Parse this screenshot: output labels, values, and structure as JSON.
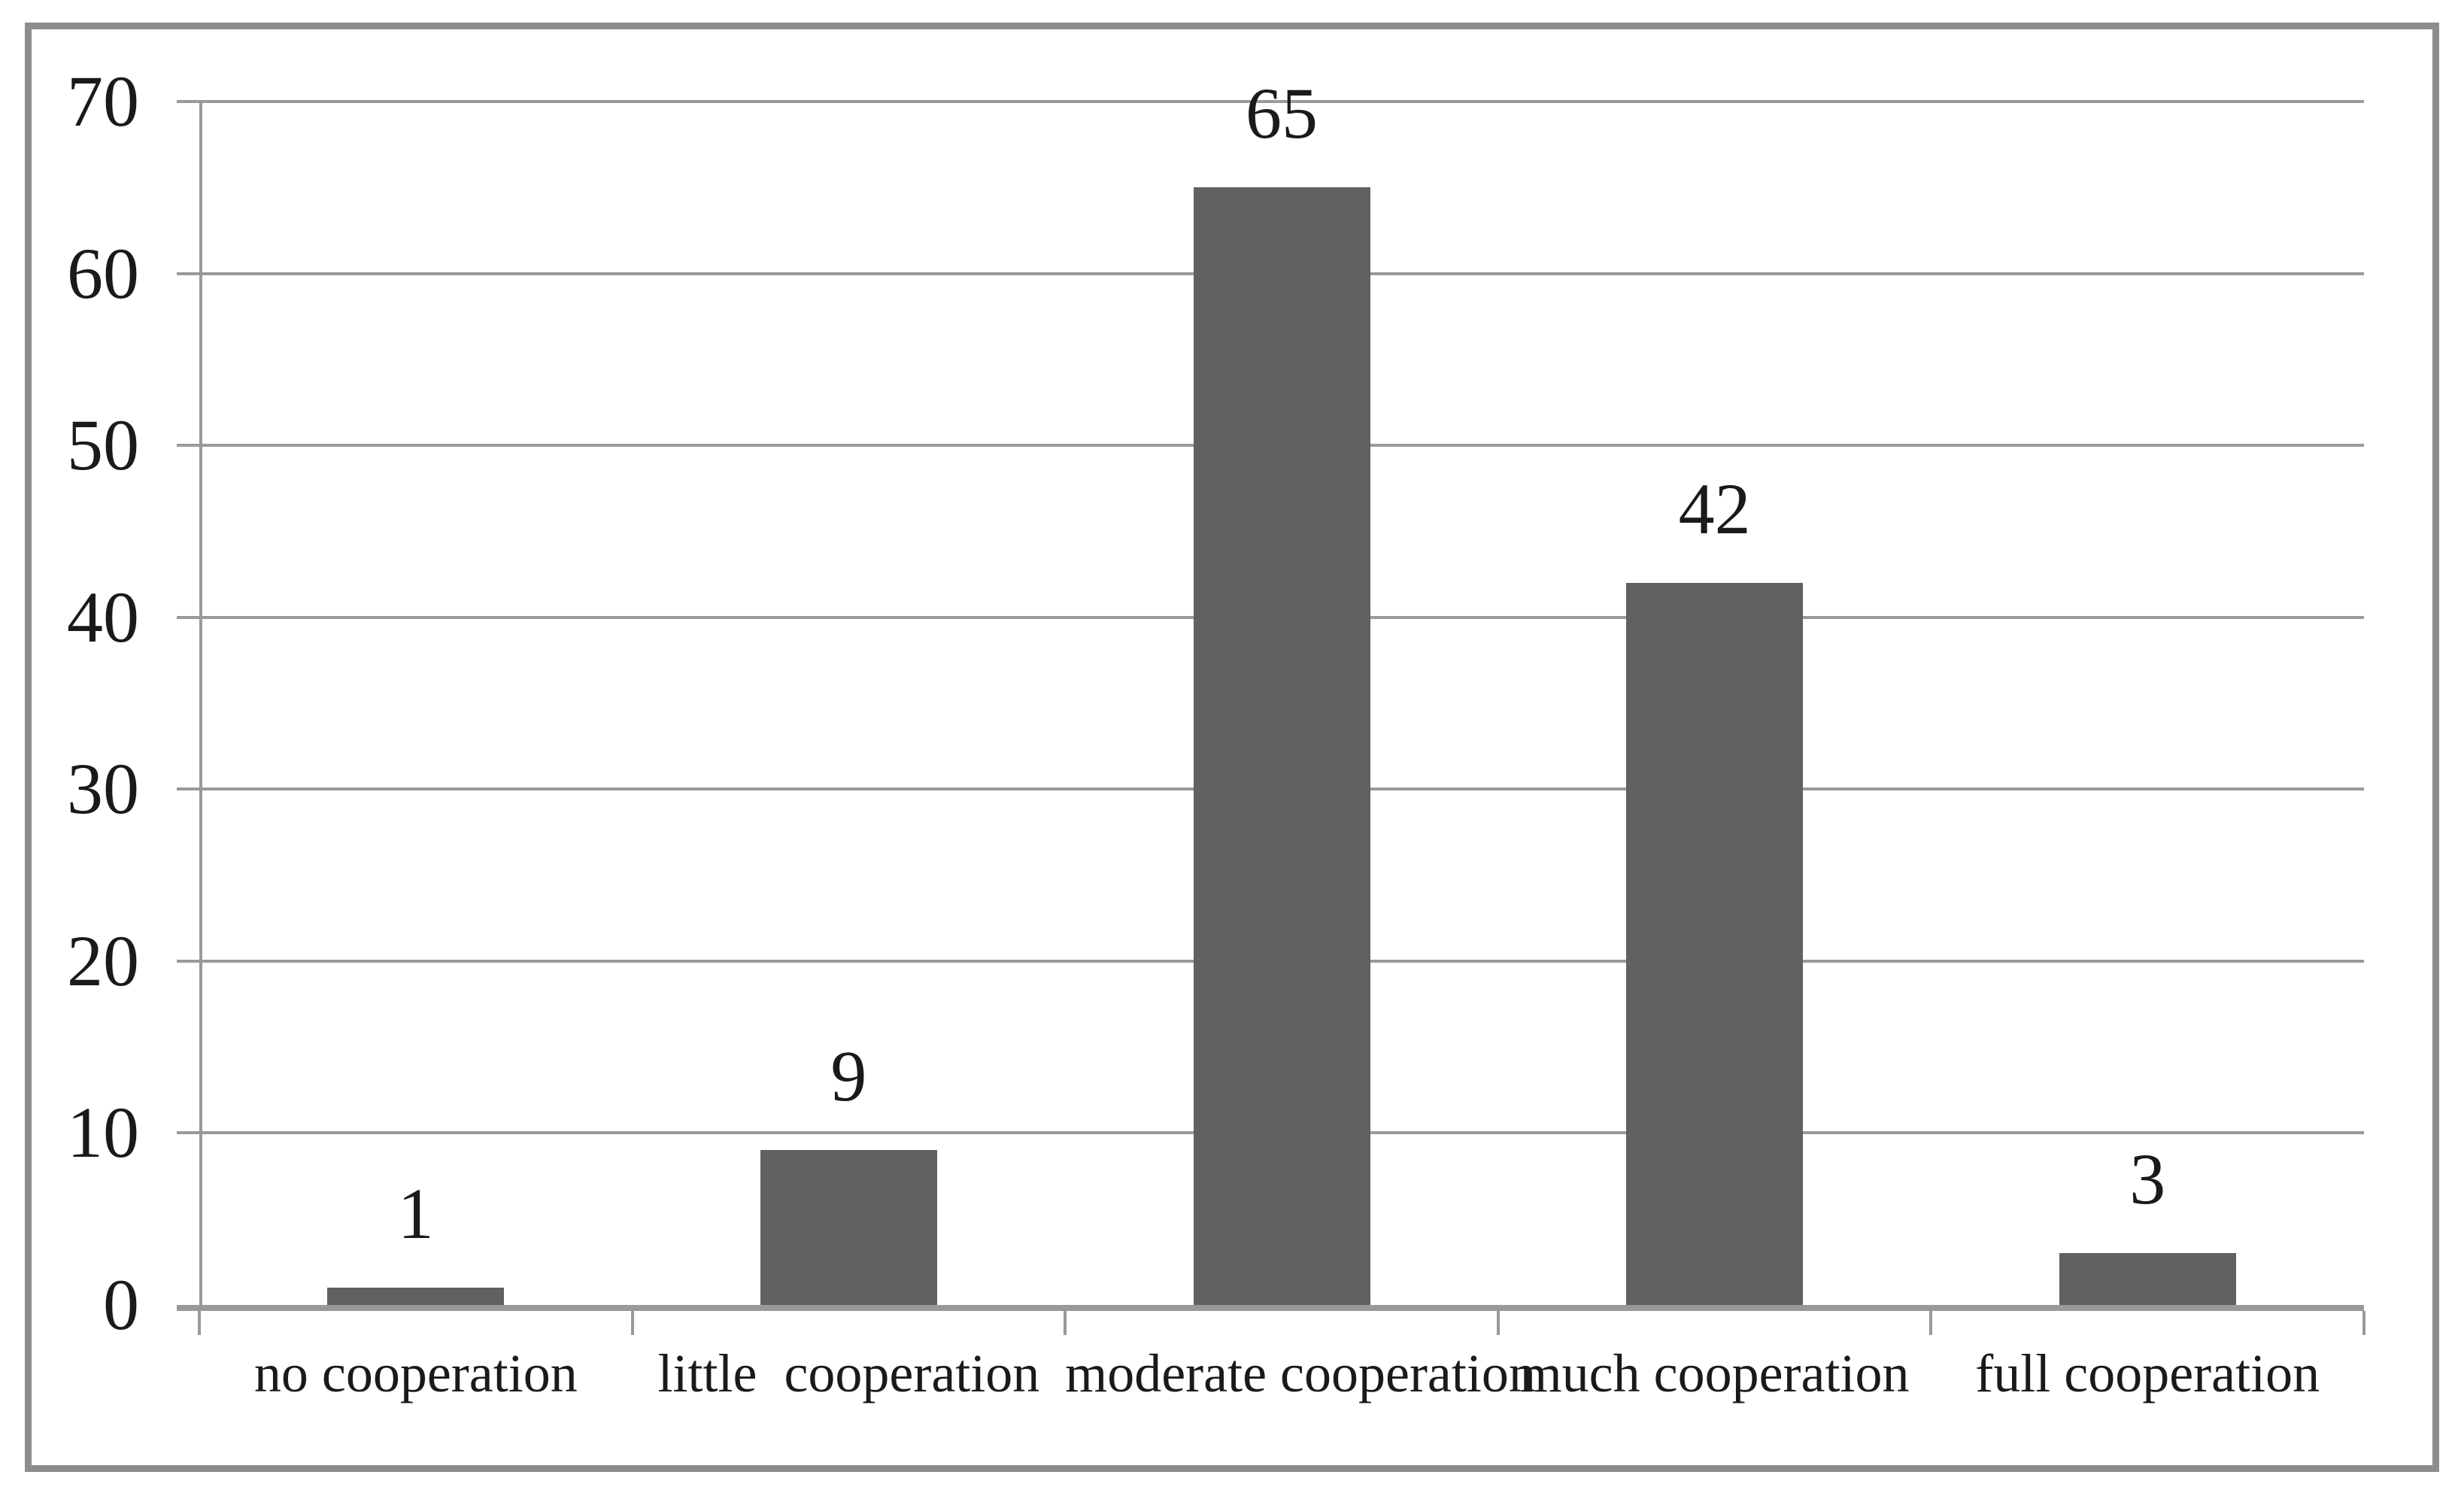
{
  "chart_data": {
    "type": "bar",
    "title": "",
    "xlabel": "",
    "ylabel": "",
    "categories": [
      "no cooperation",
      "little  cooperation",
      "moderate cooperation",
      "much cooperation",
      "full cooperation"
    ],
    "values": [
      1,
      9,
      65,
      42,
      3
    ],
    "bar_value_labels": [
      "1",
      "9",
      "65",
      "42",
      "3"
    ],
    "y_tick_labels": [
      "0",
      "10",
      "20",
      "30",
      "40",
      "50",
      "60",
      "70"
    ],
    "y_ticks": [
      0,
      10,
      20,
      30,
      40,
      50,
      60,
      70
    ],
    "ylim": [
      0,
      70
    ],
    "grid": true,
    "legend_position": "none",
    "colors": {
      "bar_fill": "#616161",
      "gridline": "#9a9a9a",
      "axis_line": "#999999",
      "frame_border": "#8c8c8c",
      "text": "#1a1a1a",
      "background": "#ffffff"
    }
  }
}
